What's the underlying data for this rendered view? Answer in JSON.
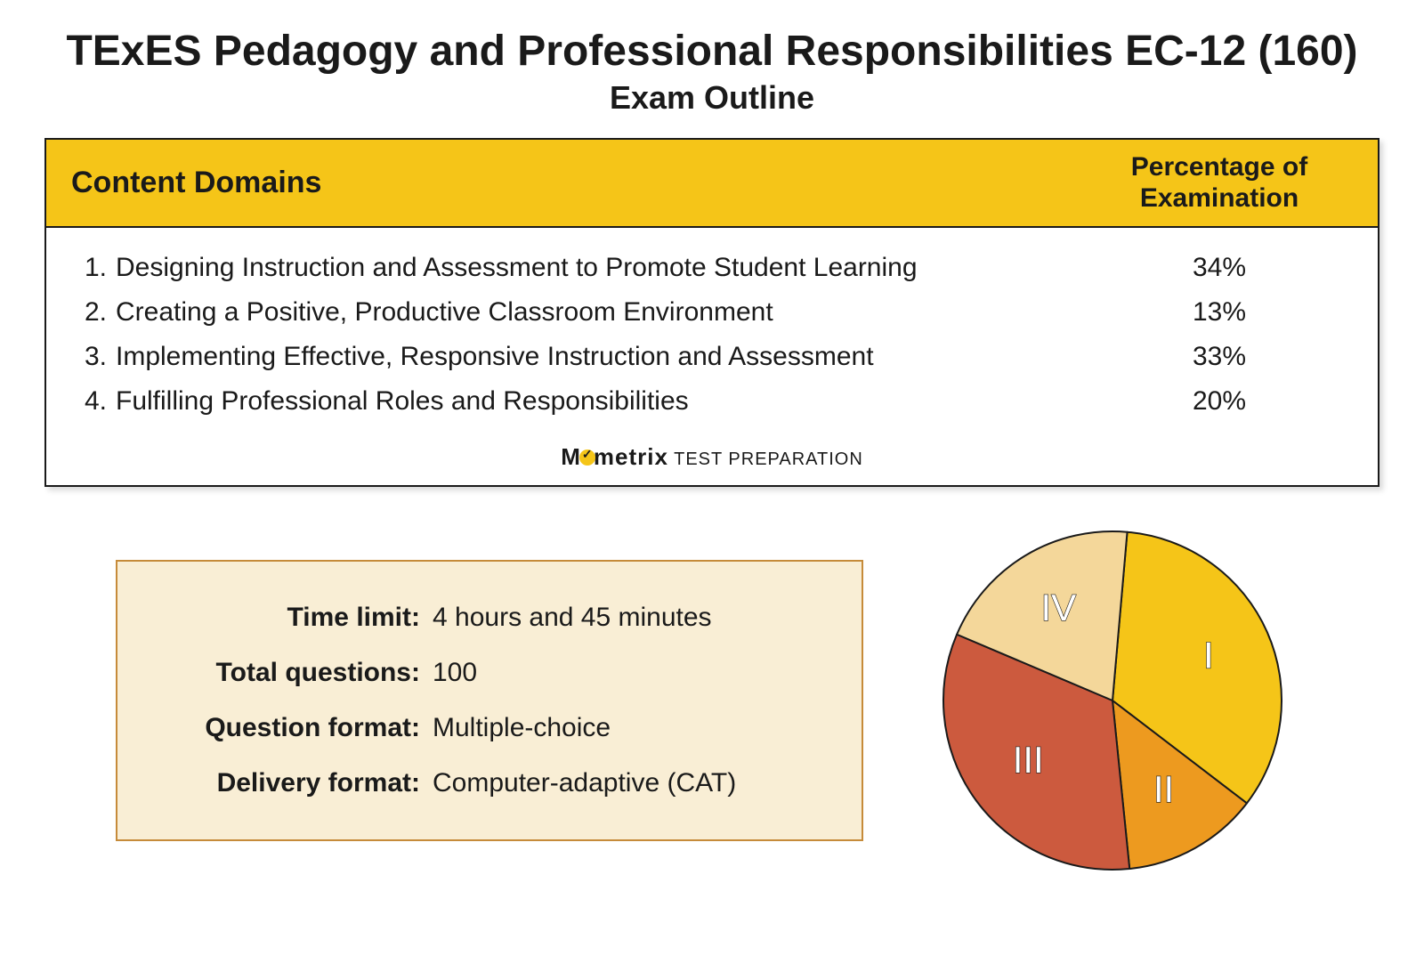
{
  "page": {
    "title": "TExES Pedagogy and Professional Responsibilities EC-12 (160)",
    "subtitle": "Exam Outline",
    "background_color": "#ffffff",
    "text_color": "#1a1a1a"
  },
  "content_table": {
    "header_bg": "#f5c518",
    "border_color": "#1a1a1a",
    "col_left_label": "Content Domains",
    "col_right_label": "Percentage of Examination",
    "header_fontsize": 34,
    "row_fontsize": 30,
    "domains": [
      {
        "num": "1.",
        "label": "Designing Instruction and Assessment to Promote Student Learning",
        "pct": "34%"
      },
      {
        "num": "2.",
        "label": "Creating a Positive, Productive Classroom Environment",
        "pct": "13%"
      },
      {
        "num": "3.",
        "label": "Implementing Effective, Responsive Instruction and Assessment",
        "pct": "33%"
      },
      {
        "num": "4.",
        "label": "Fulfilling Professional Roles and Responsibilities",
        "pct": "20%"
      }
    ],
    "brand_strong": "M",
    "brand_mid": "metrix",
    "brand_rest": " TEST PREPARATION"
  },
  "info_box": {
    "bg_color": "#f9eed5",
    "border_color": "#c68b3a",
    "label_fontsize": 30,
    "rows": [
      {
        "k": "Time limit:",
        "v": "4 hours and 45 minutes"
      },
      {
        "k": "Total questions:",
        "v": "100"
      },
      {
        "k": "Question format:",
        "v": "Multiple-choice"
      },
      {
        "k": "Delivery format:",
        "v": "Computer-adaptive (CAT)"
      }
    ]
  },
  "pie_chart": {
    "type": "pie",
    "radius": 190,
    "stroke_color": "#1a1a1a",
    "stroke_width": 2,
    "label_fontsize": 42,
    "label_stroke": "#1a1a1a",
    "label_fill": "#ffffff",
    "slices": [
      {
        "roman": "I",
        "value": 34,
        "color": "#f5c518"
      },
      {
        "roman": "II",
        "value": 13,
        "color": "#ed9a1f"
      },
      {
        "roman": "III",
        "value": 33,
        "color": "#cc5a3e"
      },
      {
        "roman": "IV",
        "value": 20,
        "color": "#f4d79a"
      }
    ],
    "start_angle_deg": -85
  }
}
